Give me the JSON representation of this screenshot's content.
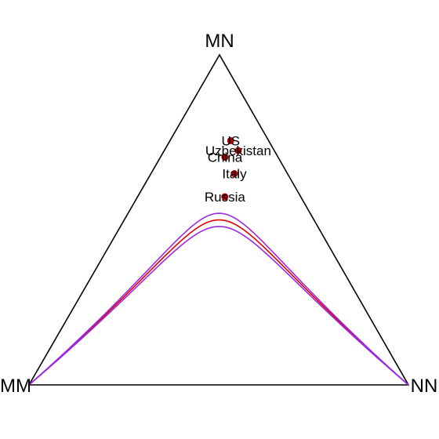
{
  "chart_data": {
    "type": "scatter",
    "plot_kind": "ternary",
    "vertices": {
      "top": "MN",
      "left": "MM",
      "right": "NN"
    },
    "points": [
      {
        "label": "US",
        "MM": 0.1,
        "MN": 0.74,
        "NN": 0.16
      },
      {
        "label": "Uzbekistan",
        "MM": 0.095,
        "MN": 0.71,
        "NN": 0.195
      },
      {
        "label": "China",
        "MM": 0.14,
        "MN": 0.69,
        "NN": 0.17
      },
      {
        "label": "Italy",
        "MM": 0.14,
        "MN": 0.64,
        "NN": 0.22
      },
      {
        "label": "Russia",
        "MM": 0.2,
        "MN": 0.57,
        "NN": 0.23
      }
    ],
    "curves": [
      {
        "role": "Hardy-Weinberg expected",
        "color": "#e00000",
        "max_MN": 0.5
      },
      {
        "role": "upper limit",
        "color": "#9a2be2",
        "max_MN": 0.52
      },
      {
        "role": "lower limit",
        "color": "#9a2be2",
        "max_MN": 0.48
      }
    ],
    "colors": {
      "points": "#b10000",
      "frame": "#000000"
    }
  }
}
